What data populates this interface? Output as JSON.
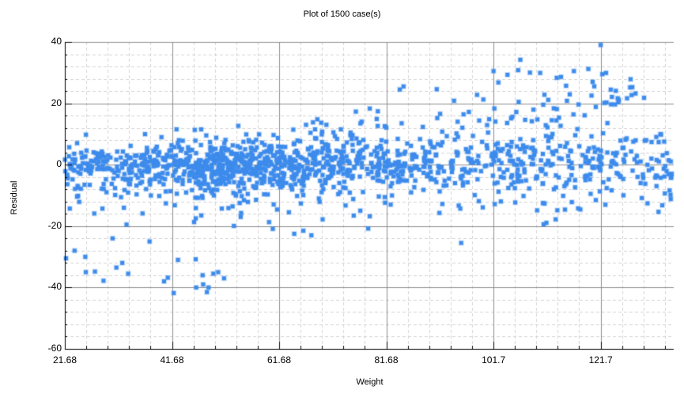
{
  "window": {
    "title": "Plot of 1500 case(s)"
  },
  "chart_data": {
    "type": "scatter",
    "title": "Plot of 1500 case(s)",
    "xlabel": "Weight",
    "ylabel": "Residual",
    "n_points": 1500,
    "xlim": [
      21.68,
      135.5
    ],
    "ylim": [
      -60,
      40
    ],
    "x_ticks": [
      "21.68",
      "41.68",
      "61.68",
      "81.68",
      "101.7",
      "121.7"
    ],
    "x_tick_values": [
      21.68,
      41.68,
      61.68,
      81.68,
      101.7,
      121.7
    ],
    "y_ticks": [
      "40",
      "20",
      "0",
      "-20",
      "-40",
      "-60"
    ],
    "y_tick_values": [
      40,
      20,
      0,
      -20,
      -40,
      -60
    ],
    "grid": {
      "major": true,
      "minor": true,
      "minor_style": "dashed"
    },
    "legend": null,
    "marker": {
      "shape": "square",
      "size": 5,
      "color": "#3d8bec"
    },
    "colors": {
      "marker": "#3d8bec",
      "major_grid": "#8c8c8c",
      "minor_grid": "#d3d3d3",
      "axis": "#000000"
    },
    "distribution": {
      "description": "Residuals vs Weight: dense band around 0 (roughly -10..+8), widening with weight; a sparse upper arm rising from ~0 at Weight 60 to ~30 at Weight 120; a low cluster near -30..-42 for Weight 22-32 and 42-52.",
      "main_band": {
        "x_range": [
          21.68,
          135
        ],
        "y_mean": 0,
        "y_sd_start": 3.5,
        "y_sd_end": 5.5,
        "count": 1330
      },
      "upper_arm": {
        "x_range": [
          60,
          128
        ],
        "slope": 0.42,
        "intercept_at_x60": 2,
        "y_sd": 4,
        "count": 95
      }
    },
    "outliers": [
      [
        21.9,
        -30.5
      ],
      [
        23.5,
        -28
      ],
      [
        25.5,
        -30
      ],
      [
        25.6,
        -35
      ],
      [
        27.3,
        -34.8
      ],
      [
        28.9,
        -37.8
      ],
      [
        30.6,
        -24
      ],
      [
        31.3,
        -33.5
      ],
      [
        32.4,
        -32
      ],
      [
        33.5,
        -35.5
      ],
      [
        33.2,
        -19.5
      ],
      [
        37.5,
        -25
      ],
      [
        40.2,
        -38
      ],
      [
        40.9,
        -36.8
      ],
      [
        42.0,
        -41.8
      ],
      [
        42.8,
        -31
      ],
      [
        46.1,
        -30.8
      ],
      [
        46.2,
        -40
      ],
      [
        47.5,
        -39
      ],
      [
        47.4,
        -36
      ],
      [
        48.2,
        -41.5
      ],
      [
        48.5,
        -40
      ],
      [
        49.4,
        -35.5
      ],
      [
        50.3,
        -35
      ],
      [
        51.4,
        -37
      ],
      [
        59.8,
        -18.7
      ],
      [
        60.5,
        -20.9
      ],
      [
        61.3,
        -14.6
      ],
      [
        63.5,
        -15.5
      ],
      [
        64.5,
        -22.5
      ],
      [
        66.2,
        -21.5
      ],
      [
        67.7,
        -23
      ],
      [
        69.8,
        -17.8
      ],
      [
        78.3,
        -20.8
      ],
      [
        78.6,
        -16.8
      ],
      [
        82.5,
        -13
      ],
      [
        91.6,
        -15.7
      ],
      [
        95.2,
        -13.3
      ],
      [
        95.5,
        -14.3
      ],
      [
        66.7,
        13.0
      ],
      [
        68.0,
        13.8
      ],
      [
        70.5,
        13.0
      ],
      [
        72.1,
        9.3
      ],
      [
        76.0,
        17.3
      ],
      [
        78.6,
        18.3
      ],
      [
        79.9,
        14.9
      ],
      [
        80.1,
        17.4
      ],
      [
        84.2,
        24.5
      ],
      [
        84.9,
        25.5
      ],
      [
        91.1,
        24.6
      ],
      [
        95.0,
        14.0
      ],
      [
        96.1,
        16.4
      ],
      [
        97.1,
        17.2
      ],
      [
        101.7,
        30.5
      ],
      [
        102.6,
        26.8
      ],
      [
        104.3,
        29.3
      ],
      [
        106.3,
        30.8
      ],
      [
        106.7,
        34.2
      ],
      [
        108.5,
        30.0
      ],
      [
        110.4,
        29.9
      ],
      [
        111.2,
        22.8
      ],
      [
        113.5,
        28.3
      ],
      [
        114.3,
        28.6
      ],
      [
        116.7,
        30.5
      ],
      [
        119.4,
        31.2
      ],
      [
        120.2,
        27.0
      ],
      [
        121.7,
        39.0
      ],
      [
        122.0,
        29.5
      ],
      [
        122.7,
        29.9
      ],
      [
        128.2,
        23.2
      ],
      [
        129.8,
        21.8
      ],
      [
        43.7,
        7.8
      ],
      [
        37.0,
        5.5
      ],
      [
        56.0,
        8.0
      ]
    ]
  }
}
